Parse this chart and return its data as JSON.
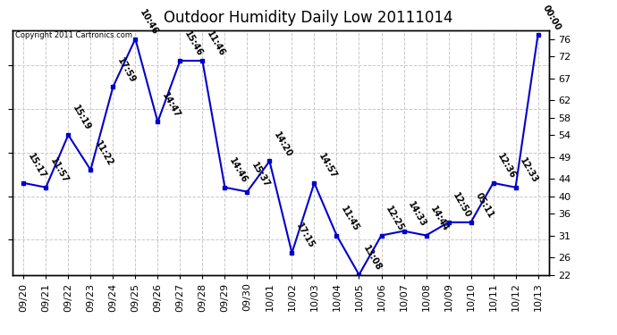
{
  "title": "Outdoor Humidity Daily Low 20111014",
  "copyright": "Copyright 2011 Cartronics.com",
  "x_labels": [
    "09/20",
    "09/21",
    "09/22",
    "09/23",
    "09/24",
    "09/25",
    "09/26",
    "09/27",
    "09/28",
    "09/29",
    "09/30",
    "10/01",
    "10/02",
    "10/03",
    "10/04",
    "10/05",
    "10/06",
    "10/07",
    "10/08",
    "10/09",
    "10/10",
    "10/11",
    "10/12",
    "10/13"
  ],
  "y_values": [
    43,
    42,
    54,
    46,
    65,
    76,
    57,
    71,
    71,
    42,
    41,
    48,
    27,
    43,
    31,
    22,
    31,
    32,
    31,
    34,
    34,
    43,
    42,
    77
  ],
  "point_labels": [
    "15:17",
    "11:57",
    "15:19",
    "11:22",
    "17:59",
    "10:46",
    "14:47",
    "15:46",
    "11:46",
    "14:46",
    "15:37",
    "14:20",
    "17:15",
    "14:57",
    "11:45",
    "13:08",
    "12:25",
    "14:33",
    "14:44",
    "12:50",
    "05:11",
    "12:36",
    "12:33",
    "00:00"
  ],
  "ylim": [
    22,
    78
  ],
  "y_ticks_right": [
    22,
    26,
    31,
    36,
    40,
    44,
    49,
    54,
    58,
    62,
    67,
    72,
    76
  ],
  "line_color": "#0000cc",
  "marker_color": "#0000cc",
  "background_color": "#ffffff",
  "grid_color": "#c8c8c8",
  "title_fontsize": 12,
  "label_fontsize": 7,
  "tick_fontsize": 8,
  "copyright_fontsize": 6
}
